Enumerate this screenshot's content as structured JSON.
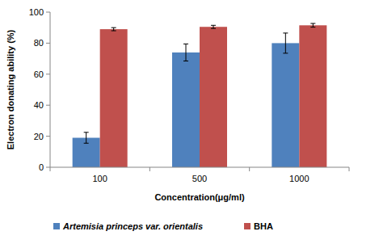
{
  "chart_data": {
    "type": "bar",
    "categories": [
      "100",
      "500",
      "1000"
    ],
    "x_label": "Concentration(μg/ml)",
    "y_label": "Electron donating ability (%)",
    "series": [
      {
        "name": "Artemisia princeps var. orientalis",
        "color": "#4f81bd",
        "values": [
          19,
          74,
          80
        ],
        "errors": [
          3.5,
          5.5,
          6.5
        ]
      },
      {
        "name": "BHA",
        "color": "#c0504d",
        "values": [
          89,
          90.5,
          91.5
        ],
        "errors": [
          1,
          1,
          1.2
        ]
      }
    ],
    "ylim": [
      0,
      100
    ],
    "yticks": [
      0,
      20,
      40,
      60,
      80,
      100
    ],
    "grid": false,
    "legend": "bottom"
  }
}
